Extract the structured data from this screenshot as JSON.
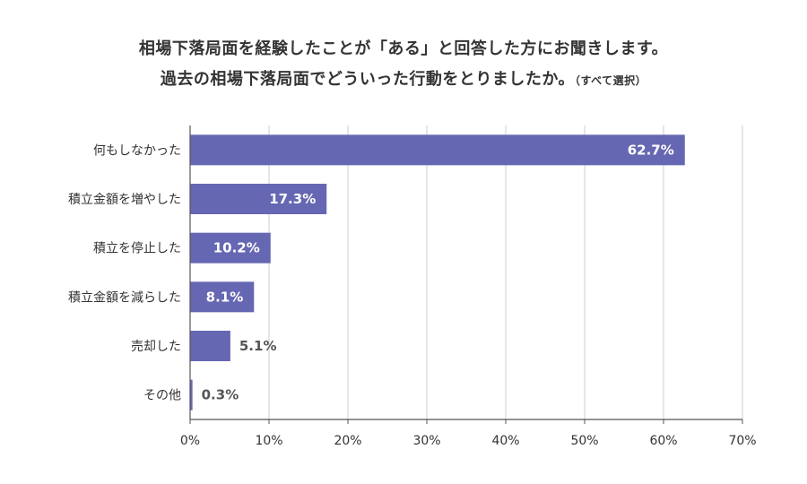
{
  "title_line1": "相場下落局面を経験したことが「ある」と回答した方にお聞きします。",
  "title_line2": "過去の相場下落局面でどういった行動をとりましたか。",
  "title_note": "（すべて選択）",
  "chart_data": {
    "type": "bar",
    "orientation": "horizontal",
    "categories": [
      "何もしなかった",
      "積立金額を増やした",
      "積立を停止した",
      "積立金額を減らした",
      "売却した",
      "その他"
    ],
    "values": [
      62.7,
      17.3,
      10.2,
      8.1,
      5.1,
      0.3
    ],
    "value_labels": [
      "62.7%",
      "17.3%",
      "10.2%",
      "8.1%",
      "5.1%",
      "0.3%"
    ],
    "xlim": [
      0,
      70
    ],
    "x_ticks": [
      0,
      10,
      20,
      30,
      40,
      50,
      60,
      70
    ],
    "x_tick_labels": [
      "0%",
      "10%",
      "20%",
      "30%",
      "40%",
      "50%",
      "60%",
      "70%"
    ],
    "grid": "vertical",
    "bar_color": "#6667b2",
    "inside_label_color": "#ffffff",
    "outside_label_color": "#555555"
  }
}
